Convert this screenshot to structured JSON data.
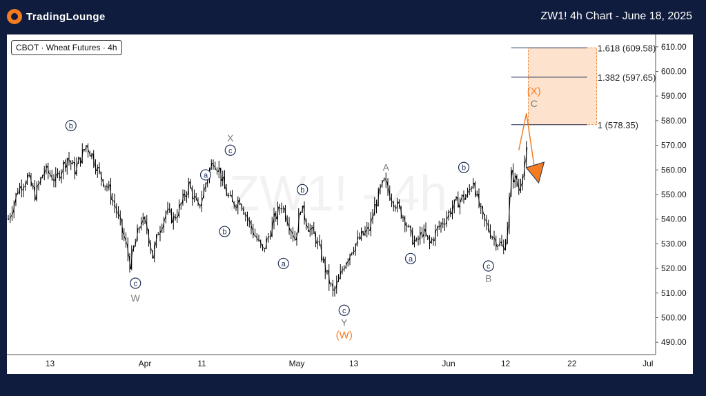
{
  "header": {
    "brand": "TradingLounge",
    "title": "ZW1! 4h Chart - June 18, 2025"
  },
  "info_box": "CBOT · Wheat Futures · 4h",
  "watermark": "ZW1! - 4h",
  "colors": {
    "background": "#0f1c3d",
    "plot_bg": "#ffffff",
    "candles": "#000000",
    "wave_orange": "#f47b20",
    "target_zone": "#fde0c8",
    "wave_gray": "#7a7a7a",
    "circle_label": "#1f2f55"
  },
  "chart_data": {
    "type": "candlestick",
    "symbol": "ZW1!",
    "timeframe": "4h",
    "ylim": [
      485,
      615
    ],
    "y_ticks": [
      "490.00",
      "500.00",
      "510.00",
      "520.00",
      "530.00",
      "540.00",
      "550.00",
      "560.00",
      "570.00",
      "580.00",
      "590.00",
      "600.00",
      "610.00"
    ],
    "x_ticks": [
      "13",
      "Apr",
      "11",
      "May",
      "13",
      "Jun",
      "12",
      "22",
      "Jul"
    ],
    "price_path": [
      {
        "t": 0,
        "p": 540
      },
      {
        "t": 5,
        "p": 552
      },
      {
        "t": 10,
        "p": 557
      },
      {
        "t": 14,
        "p": 550
      },
      {
        "t": 19,
        "p": 560
      },
      {
        "t": 25,
        "p": 556
      },
      {
        "t": 31,
        "p": 565
      },
      {
        "t": 35,
        "p": 560
      },
      {
        "t": 41,
        "p": 570
      },
      {
        "t": 44,
        "p": 566
      },
      {
        "t": 48,
        "p": 558
      },
      {
        "t": 53,
        "p": 552
      },
      {
        "t": 57,
        "p": 543
      },
      {
        "t": 61,
        "p": 532
      },
      {
        "t": 64,
        "p": 522
      },
      {
        "t": 66,
        "p": 528
      },
      {
        "t": 70,
        "p": 540
      },
      {
        "t": 73,
        "p": 536
      },
      {
        "t": 76,
        "p": 525
      },
      {
        "t": 79,
        "p": 535
      },
      {
        "t": 83,
        "p": 543
      },
      {
        "t": 87,
        "p": 540
      },
      {
        "t": 91,
        "p": 546
      },
      {
        "t": 95,
        "p": 554
      },
      {
        "t": 97,
        "p": 550
      },
      {
        "t": 100,
        "p": 544
      },
      {
        "t": 103,
        "p": 552
      },
      {
        "t": 106,
        "p": 560
      },
      {
        "t": 108,
        "p": 564
      },
      {
        "t": 111,
        "p": 560
      },
      {
        "t": 114,
        "p": 552
      },
      {
        "t": 118,
        "p": 546
      },
      {
        "t": 122,
        "p": 548
      },
      {
        "t": 127,
        "p": 538
      },
      {
        "t": 132,
        "p": 530
      },
      {
        "t": 134,
        "p": 527
      },
      {
        "t": 137,
        "p": 533
      },
      {
        "t": 140,
        "p": 540
      },
      {
        "t": 144,
        "p": 546
      },
      {
        "t": 147,
        "p": 540
      },
      {
        "t": 151,
        "p": 532
      },
      {
        "t": 154,
        "p": 545
      },
      {
        "t": 158,
        "p": 537
      },
      {
        "t": 162,
        "p": 532
      },
      {
        "t": 165,
        "p": 525
      },
      {
        "t": 168,
        "p": 517
      },
      {
        "t": 171,
        "p": 510
      },
      {
        "t": 174,
        "p": 515
      },
      {
        "t": 177,
        "p": 522
      },
      {
        "t": 181,
        "p": 528
      },
      {
        "t": 186,
        "p": 533
      },
      {
        "t": 190,
        "p": 536
      },
      {
        "t": 193,
        "p": 545
      },
      {
        "t": 196,
        "p": 552
      },
      {
        "t": 198,
        "p": 555
      },
      {
        "t": 201,
        "p": 550
      },
      {
        "t": 205,
        "p": 545
      },
      {
        "t": 209,
        "p": 540
      },
      {
        "t": 212,
        "p": 533
      },
      {
        "t": 215,
        "p": 530
      },
      {
        "t": 218,
        "p": 535
      },
      {
        "t": 222,
        "p": 530
      },
      {
        "t": 226,
        "p": 536
      },
      {
        "t": 230,
        "p": 540
      },
      {
        "t": 234,
        "p": 545
      },
      {
        "t": 238,
        "p": 548
      },
      {
        "t": 242,
        "p": 550
      },
      {
        "t": 245,
        "p": 556
      },
      {
        "t": 247,
        "p": 548
      },
      {
        "t": 250,
        "p": 540
      },
      {
        "t": 253,
        "p": 536
      },
      {
        "t": 256,
        "p": 532
      },
      {
        "t": 259,
        "p": 530
      },
      {
        "t": 261,
        "p": 527
      },
      {
        "t": 263,
        "p": 538
      },
      {
        "t": 265,
        "p": 558
      },
      {
        "t": 267,
        "p": 556
      },
      {
        "t": 269,
        "p": 552
      },
      {
        "t": 271,
        "p": 560
      },
      {
        "t": 273,
        "p": 567
      }
    ],
    "fib_levels": [
      {
        "label": "1.618 (609.58)",
        "value": 609.58
      },
      {
        "label": "1.382 (597.65)",
        "value": 597.65
      },
      {
        "label": "1 (578.35)",
        "value": 578.35
      }
    ],
    "target_zone": [
      578.35,
      609.58
    ],
    "wave_labels": [
      {
        "text": "b",
        "t": 33,
        "p": 578,
        "style": "circle"
      },
      {
        "text": "c",
        "t": 67,
        "p": 514,
        "style": "circle"
      },
      {
        "text": "W",
        "t": 67,
        "p": 508,
        "style": "gray"
      },
      {
        "text": "a",
        "t": 104,
        "p": 558,
        "style": "circle"
      },
      {
        "text": "b",
        "t": 114,
        "p": 535,
        "style": "circle"
      },
      {
        "text": "X",
        "t": 117,
        "p": 573,
        "style": "gray"
      },
      {
        "text": "c",
        "t": 117,
        "p": 568,
        "style": "circle"
      },
      {
        "text": "a",
        "t": 145,
        "p": 522,
        "style": "circle"
      },
      {
        "text": "b",
        "t": 155,
        "p": 552,
        "style": "circle"
      },
      {
        "text": "c",
        "t": 177,
        "p": 503,
        "style": "circle"
      },
      {
        "text": "Y",
        "t": 177,
        "p": 498,
        "style": "gray"
      },
      {
        "text": "(W)",
        "t": 177,
        "p": 493,
        "style": "orange"
      },
      {
        "text": "A",
        "t": 199,
        "p": 561,
        "style": "gray"
      },
      {
        "text": "a",
        "t": 212,
        "p": 524,
        "style": "circle"
      },
      {
        "text": "b",
        "t": 240,
        "p": 561,
        "style": "circle"
      },
      {
        "text": "c",
        "t": 253,
        "p": 521,
        "style": "circle"
      },
      {
        "text": "B",
        "t": 253,
        "p": 516,
        "style": "gray"
      },
      {
        "text": "(X)",
        "t": 277,
        "p": 592,
        "style": "orange"
      },
      {
        "text": "C",
        "t": 277,
        "p": 587,
        "style": "gray"
      }
    ],
    "projection": [
      {
        "t": 269,
        "p": 568
      },
      {
        "t": 273,
        "p": 583
      },
      {
        "t": 278,
        "p": 557
      }
    ]
  }
}
